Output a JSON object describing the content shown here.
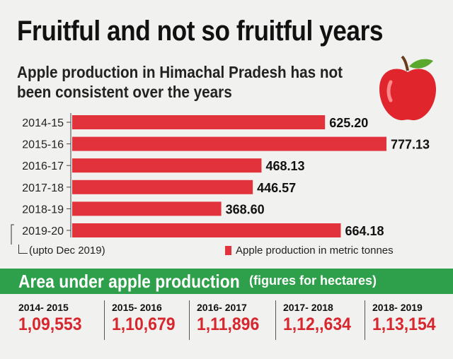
{
  "title": "Fruitful and not so fruitful years",
  "subtitle": "Apple production in Himachal Pradesh has not been consistent over the years",
  "note": "(upto Dec 2019)",
  "legend_label": "Apple production in metric tonnes",
  "chart_data": {
    "type": "bar",
    "orientation": "horizontal",
    "categories": [
      "2014-15",
      "2015-16",
      "2016-17",
      "2017-18",
      "2018-19",
      "2019-20"
    ],
    "values": [
      625.2,
      777.13,
      468.13,
      446.57,
      368.6,
      664.18
    ],
    "value_labels": [
      "625.20",
      "777.13",
      "468.13",
      "446.57",
      "368.60",
      "664.18"
    ],
    "series": [
      {
        "name": "Apple production in metric tonnes",
        "values": [
          625.2,
          777.13,
          468.13,
          446.57,
          368.6,
          664.18
        ]
      }
    ],
    "bar_color": "#e2323b",
    "grid": false
  },
  "area_section": {
    "title": "Area under apple production",
    "note": "(figures for hectares)",
    "items": [
      {
        "year": "2014- 2015",
        "value": "1,09,553"
      },
      {
        "year": "2015- 2016",
        "value": "1,10,679"
      },
      {
        "year": "2016- 2017",
        "value": "1,11,896"
      },
      {
        "year": "2017- 2018",
        "value": "1,12,,634"
      },
      {
        "year": "2018- 2019",
        "value": "1,13,154"
      }
    ],
    "accent_color": "#2e9f4a",
    "value_color": "#d7262e"
  }
}
